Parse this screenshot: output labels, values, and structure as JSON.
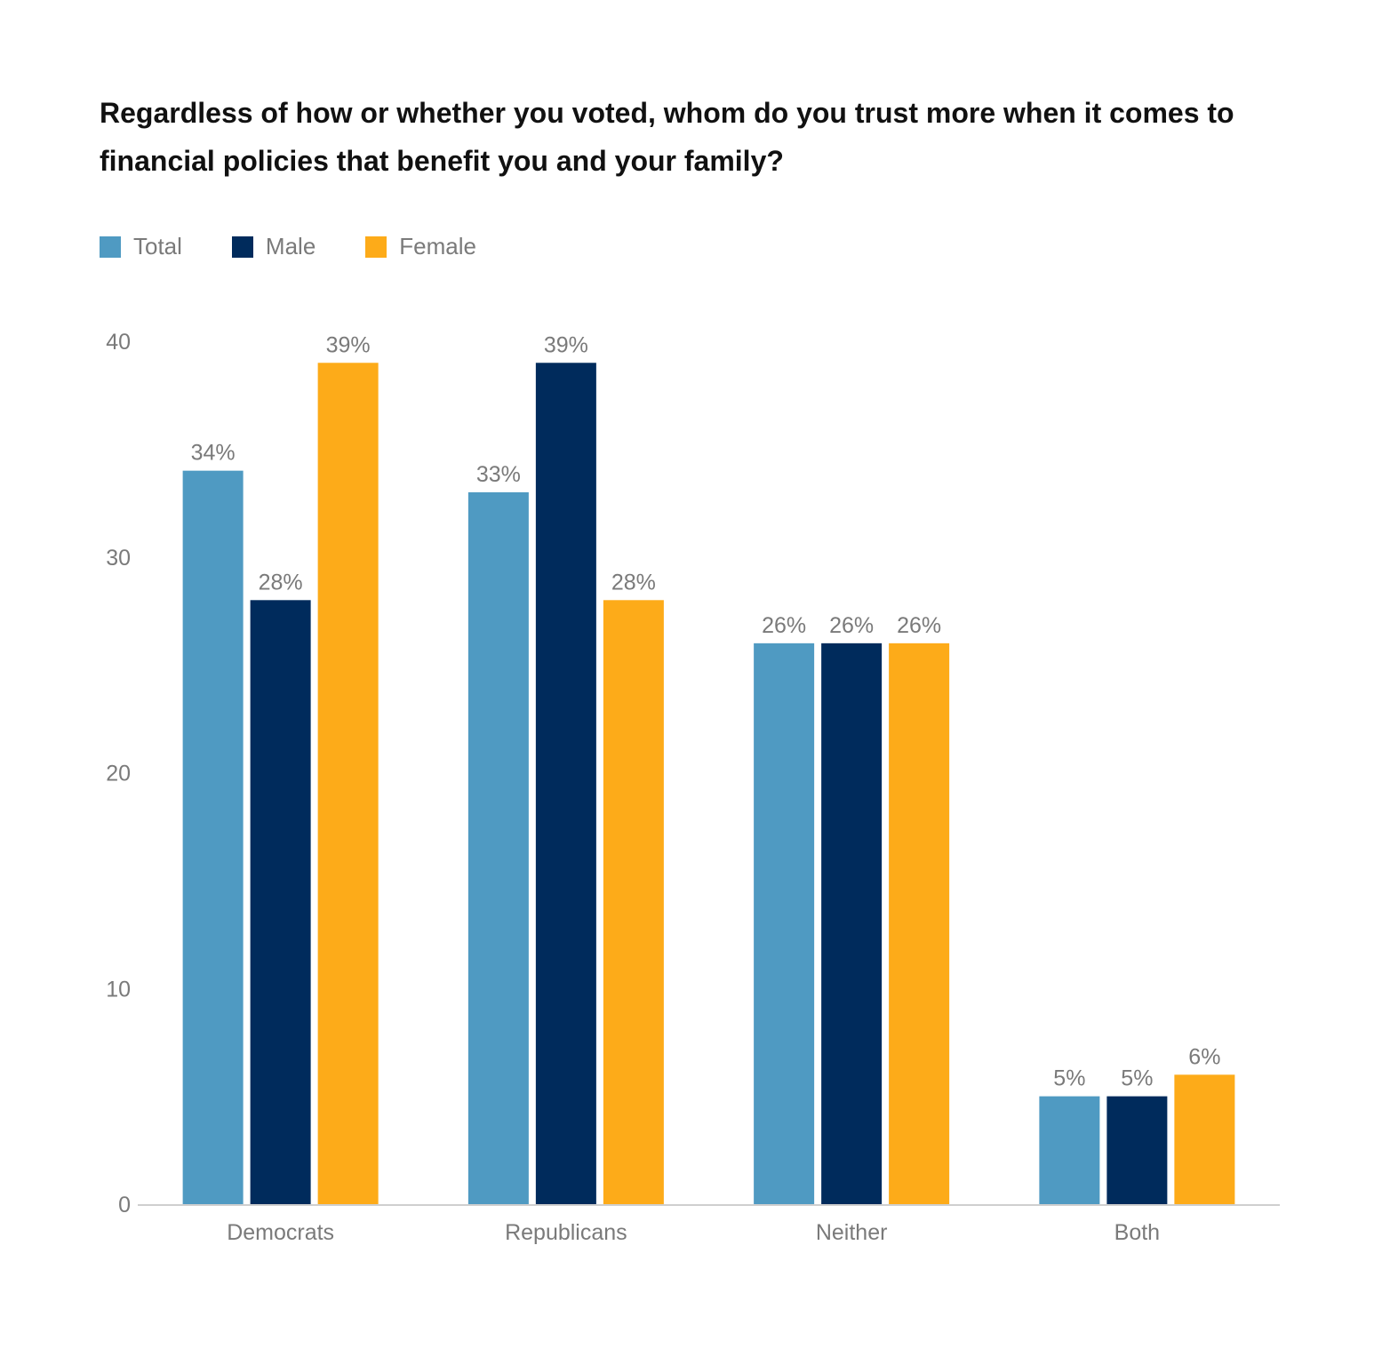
{
  "chart_data": {
    "type": "bar",
    "title": "Regardless of how or whether you voted, whom do you trust more when it comes to financial policies that benefit you and your family?",
    "categories": [
      "Democrats",
      "Republicans",
      "Neither",
      "Both"
    ],
    "series": [
      {
        "name": "Total",
        "color": "#4f9ac2",
        "values": [
          34,
          33,
          26,
          5
        ],
        "labels": [
          "34%",
          "33%",
          "26%",
          "5%"
        ]
      },
      {
        "name": "Male",
        "color": "#002b5c",
        "values": [
          28,
          39,
          26,
          5
        ],
        "labels": [
          "28%",
          "39%",
          "26%",
          "5%"
        ]
      },
      {
        "name": "Female",
        "color": "#fdab19",
        "values": [
          39,
          28,
          26,
          6
        ],
        "labels": [
          "39%",
          "28%",
          "26%",
          "6%"
        ]
      }
    ],
    "yticks": [
      "0",
      "10",
      "20",
      "30",
      "40"
    ],
    "ylim": [
      0,
      40
    ],
    "grid": false,
    "legend_position": "top-left"
  }
}
